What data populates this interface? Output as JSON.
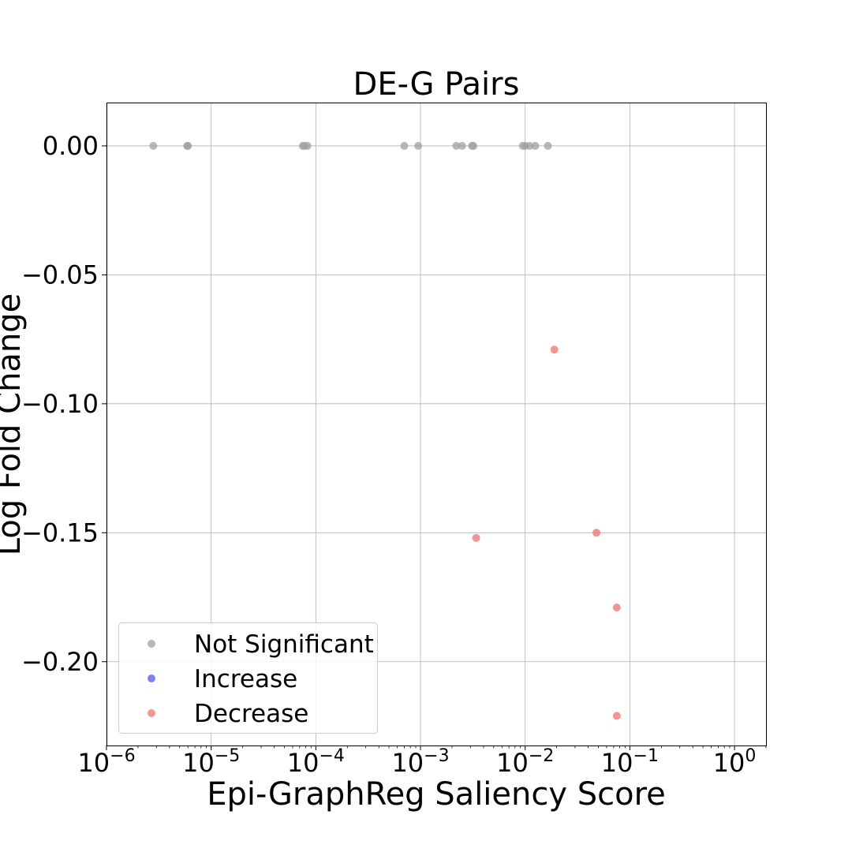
{
  "chart_data": {
    "type": "scatter",
    "title": "DE-G Pairs",
    "xlabel": "Epi-GraphReg Saliency Score",
    "ylabel": "Log Fold Change",
    "x_scale": "log",
    "xlim": [
      1e-06,
      2
    ],
    "ylim": [
      -0.2325,
      0.0168
    ],
    "grid": true,
    "legend_position": "bottom-left",
    "x_ticks": [
      {
        "value": 1e-06,
        "label_base": "10",
        "label_exp": "−6"
      },
      {
        "value": 1e-05,
        "label_base": "10",
        "label_exp": "−5"
      },
      {
        "value": 0.0001,
        "label_base": "10",
        "label_exp": "−4"
      },
      {
        "value": 0.001,
        "label_base": "10",
        "label_exp": "−3"
      },
      {
        "value": 0.01,
        "label_base": "10",
        "label_exp": "−2"
      },
      {
        "value": 0.1,
        "label_base": "10",
        "label_exp": "−1"
      },
      {
        "value": 1,
        "label_base": "10",
        "label_exp": "0"
      }
    ],
    "y_ticks": [
      {
        "value": 0.0,
        "label": "0.00"
      },
      {
        "value": -0.05,
        "label": "−0.05"
      },
      {
        "value": -0.1,
        "label": "−0.10"
      },
      {
        "value": -0.15,
        "label": "−0.15"
      },
      {
        "value": -0.2,
        "label": "−0.20"
      }
    ],
    "series": [
      {
        "name": "Not Significant",
        "color": "#a0a0a0",
        "points": [
          {
            "x": 2.8e-06,
            "y": 0.0
          },
          {
            "x": 5.9e-06,
            "y": 0.0
          },
          {
            "x": 6e-06,
            "y": 0.0
          },
          {
            "x": 7.5e-05,
            "y": 0.0
          },
          {
            "x": 7.8e-05,
            "y": 0.0
          },
          {
            "x": 8.3e-05,
            "y": 0.0
          },
          {
            "x": 0.0007,
            "y": 0.0
          },
          {
            "x": 0.00095,
            "y": 0.0
          },
          {
            "x": 0.0022,
            "y": 0.0
          },
          {
            "x": 0.0025,
            "y": 0.0
          },
          {
            "x": 0.0031,
            "y": 0.0
          },
          {
            "x": 0.0032,
            "y": 0.0
          },
          {
            "x": 0.0095,
            "y": 0.0
          },
          {
            "x": 0.01,
            "y": 0.0
          },
          {
            "x": 0.011,
            "y": 0.0
          },
          {
            "x": 0.0125,
            "y": 0.0
          },
          {
            "x": 0.0165,
            "y": 0.0
          }
        ]
      },
      {
        "name": "Increase",
        "color": "#5555ee",
        "points": []
      },
      {
        "name": "Decrease",
        "color": "#f07070",
        "points": [
          {
            "x": 0.019,
            "y": -0.079
          },
          {
            "x": 0.0034,
            "y": -0.152
          },
          {
            "x": 0.048,
            "y": -0.15
          },
          {
            "x": 0.075,
            "y": -0.179
          },
          {
            "x": 0.075,
            "y": -0.221
          }
        ]
      }
    ]
  }
}
